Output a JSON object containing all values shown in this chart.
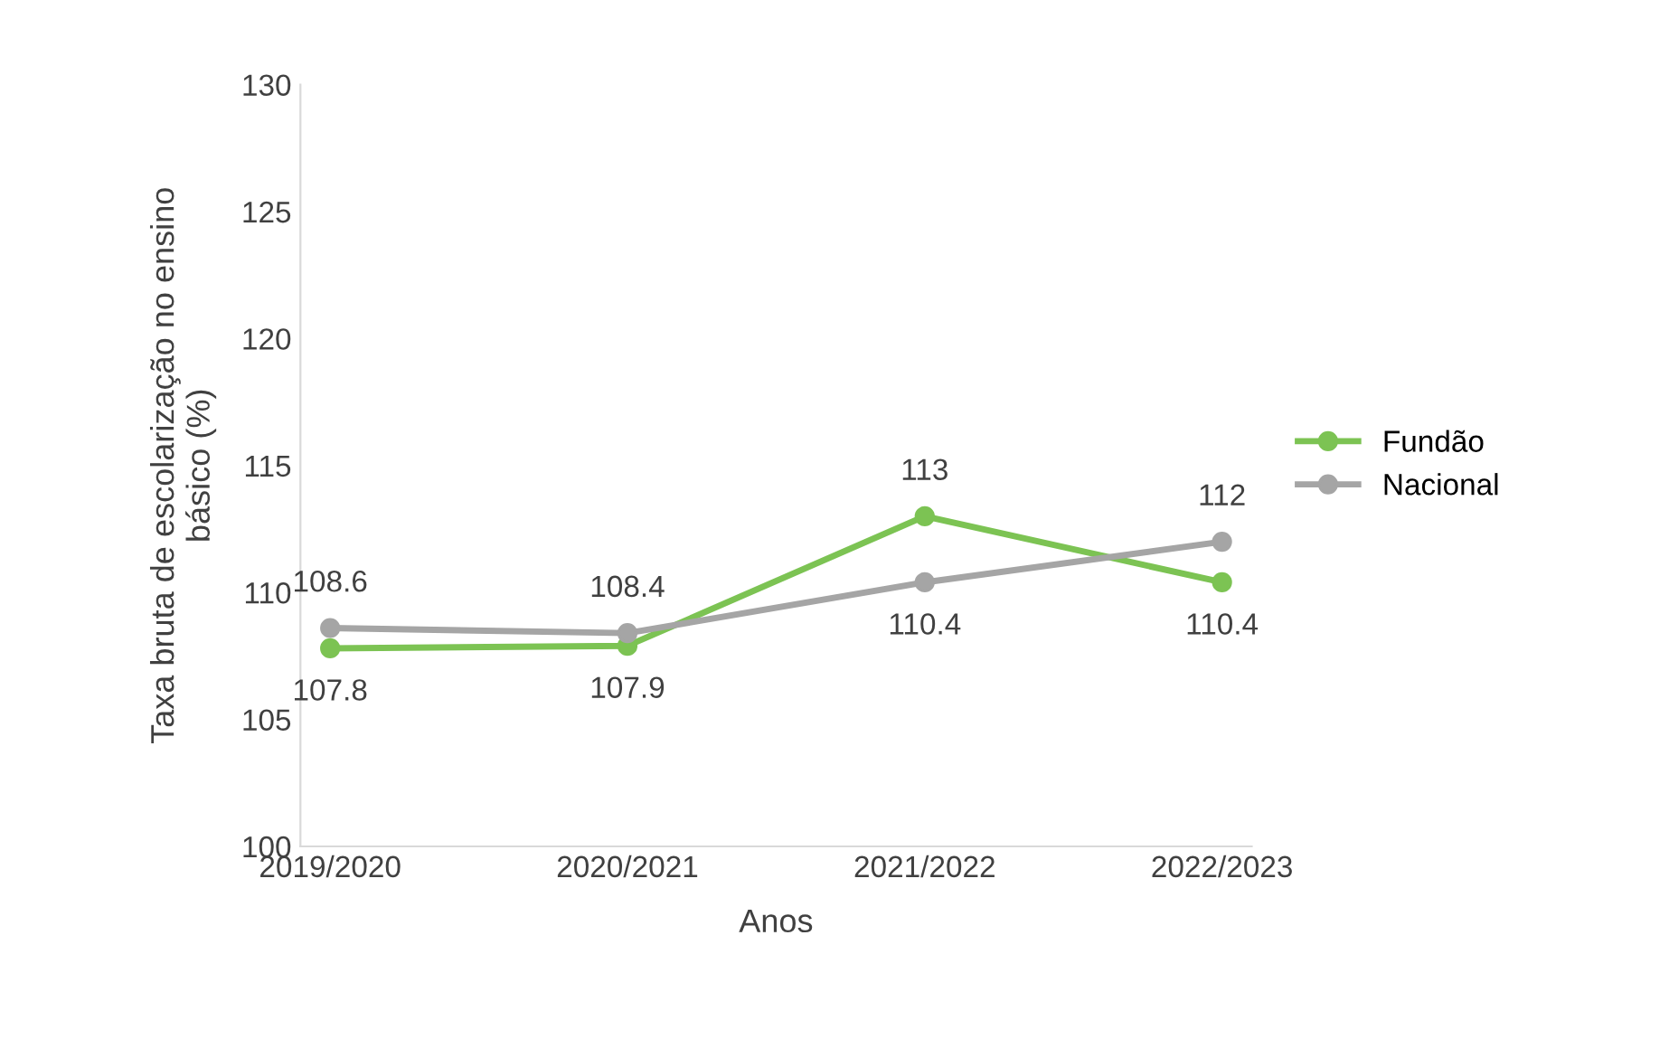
{
  "chart_data": {
    "type": "line",
    "xlabel": "Anos",
    "ylabel": "Taxa bruta de escolarização no ensino\nbásico (%)",
    "categories": [
      "2019/2020",
      "2020/2021",
      "2021/2022",
      "2022/2023"
    ],
    "series": [
      {
        "name": "Fundão",
        "color": "#7cc353",
        "values": [
          107.8,
          107.9,
          113,
          110.4
        ]
      },
      {
        "name": "Nacional",
        "color": "#a5a5a5",
        "values": [
          108.6,
          108.4,
          110.4,
          112
        ]
      }
    ],
    "ylim": [
      100,
      130
    ],
    "yticks": [
      100,
      105,
      110,
      115,
      120,
      125,
      130
    ],
    "data_labels": true,
    "legend": "right",
    "marker": "circle",
    "line_style": "solid",
    "grid": false
  }
}
